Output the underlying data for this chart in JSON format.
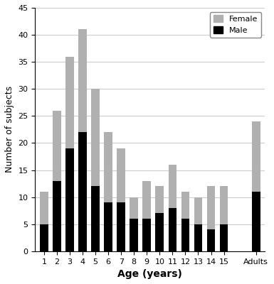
{
  "categories": [
    "1",
    "2",
    "3",
    "4",
    "5",
    "6",
    "7",
    "8",
    "9",
    "10",
    "11",
    "12",
    "13",
    "14",
    "15",
    "Adults"
  ],
  "male_values": [
    5,
    13,
    19,
    22,
    12,
    9,
    9,
    6,
    6,
    7,
    8,
    6,
    5,
    4,
    5,
    11
  ],
  "female_values": [
    6,
    13,
    17,
    19,
    18,
    13,
    10,
    4,
    7,
    5,
    8,
    5,
    5,
    8,
    7,
    13
  ],
  "bar_color_male": "#000000",
  "bar_color_female": "#b0b0b0",
  "ylabel": "Number of subjects",
  "xlabel": "Age (years)",
  "ylim": [
    0,
    45
  ],
  "yticks": [
    0,
    5,
    10,
    15,
    20,
    25,
    30,
    35,
    40,
    45
  ],
  "legend_female": "Female",
  "legend_male": "Male",
  "background_color": "#ffffff",
  "grid_color": "#cccccc",
  "bar_width": 0.65
}
